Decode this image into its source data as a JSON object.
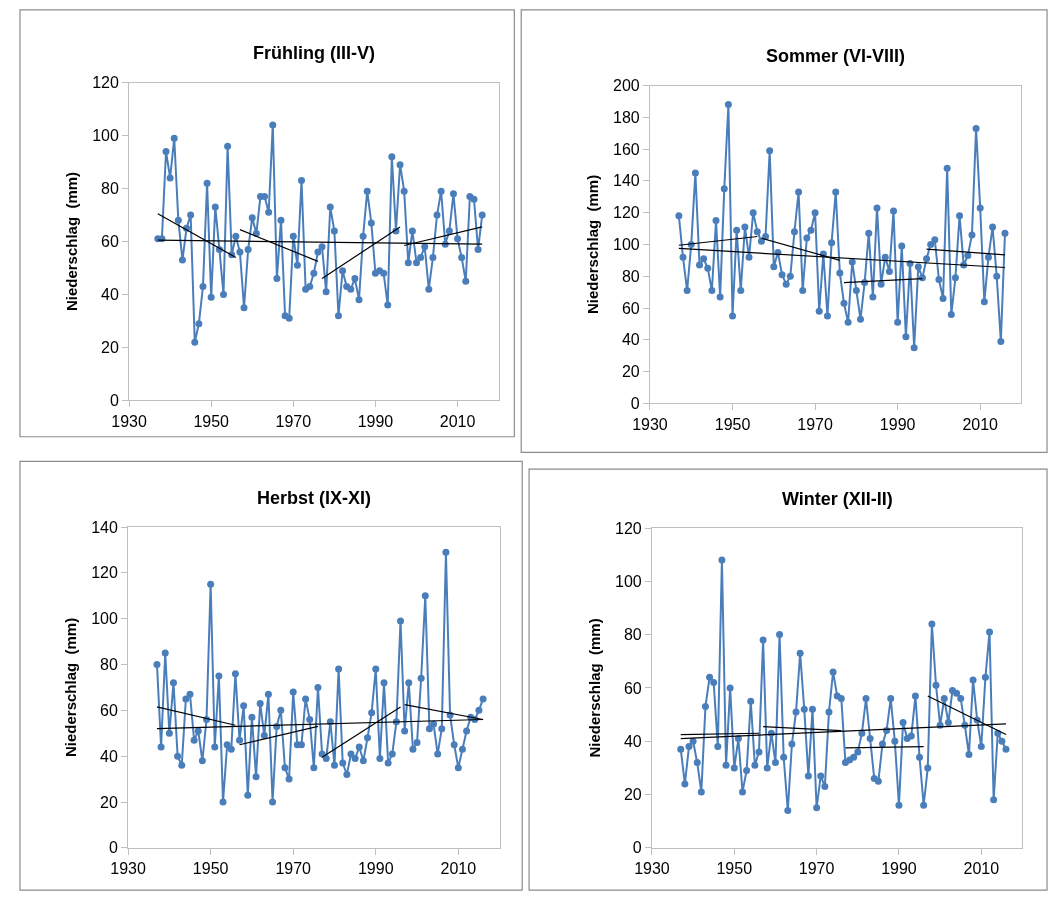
{
  "chart_data": [
    {
      "type": "line",
      "title": "Frühling (III-V)",
      "ylabel": "Niederschlag  (mm)",
      "xlim": [
        1930,
        2020
      ],
      "xticks": [
        1930,
        1950,
        1970,
        1990,
        2010
      ],
      "ylim": [
        0,
        120
      ],
      "yticks": [
        0,
        20,
        40,
        60,
        80,
        100,
        120
      ],
      "marker": "circle",
      "line_style": "solid",
      "x": [
        1937,
        1938,
        1939,
        1940,
        1941,
        1942,
        1943,
        1944,
        1945,
        1946,
        1947,
        1948,
        1949,
        1950,
        1951,
        1952,
        1953,
        1954,
        1955,
        1956,
        1957,
        1958,
        1959,
        1960,
        1961,
        1962,
        1963,
        1964,
        1965,
        1966,
        1967,
        1968,
        1969,
        1970,
        1971,
        1972,
        1973,
        1974,
        1975,
        1976,
        1977,
        1978,
        1979,
        1980,
        1981,
        1982,
        1983,
        1984,
        1985,
        1986,
        1987,
        1988,
        1989,
        1990,
        1991,
        1992,
        1993,
        1994,
        1995,
        1996,
        1997,
        1998,
        1999,
        2000,
        2001,
        2002,
        2003,
        2004,
        2005,
        2006,
        2007,
        2008,
        2009,
        2010,
        2011,
        2012,
        2013,
        2014,
        2015,
        2016
      ],
      "series": [
        {
          "color": "#4a7ebb",
          "values": [
            61,
            61,
            94,
            84,
            99,
            68,
            53,
            65,
            70,
            22,
            29,
            43,
            82,
            39,
            73,
            57,
            40,
            96,
            55,
            62,
            56,
            35,
            57,
            69,
            63,
            77,
            77,
            71,
            104,
            46,
            68,
            32,
            31,
            62,
            51,
            83,
            42,
            43,
            48,
            56,
            58,
            41,
            73,
            64,
            32,
            49,
            43,
            42,
            46,
            38,
            62,
            79,
            67,
            48,
            49,
            48,
            36,
            92,
            64,
            89,
            79,
            52,
            64,
            52,
            54,
            58,
            42,
            54,
            70,
            79,
            59,
            64,
            78,
            61,
            54,
            45,
            77,
            76,
            57,
            70
          ]
        },
        {
          "type": "line",
          "color": "#000000",
          "marker": "none",
          "x": [
            1937,
            2016
          ],
          "values": [
            60.5,
            59
          ]
        },
        {
          "type": "line",
          "color": "#000000",
          "marker": "none",
          "x": [
            1937,
            1956
          ],
          "values": [
            70.5,
            54
          ]
        },
        {
          "type": "line",
          "color": "#000000",
          "marker": "none",
          "x": [
            1957,
            1976
          ],
          "values": [
            64.5,
            52.5
          ]
        },
        {
          "type": "line",
          "color": "#000000",
          "marker": "none",
          "x": [
            1977,
            1996
          ],
          "values": [
            46,
            65.5
          ]
        },
        {
          "type": "line",
          "color": "#000000",
          "marker": "none",
          "x": [
            1997,
            2016
          ],
          "values": [
            58.5,
            65.5
          ]
        }
      ]
    },
    {
      "type": "line",
      "title": "Sommer (VI-VIII)",
      "ylabel": "Niederschlag  (mm)",
      "xlim": [
        1930,
        2020
      ],
      "xticks": [
        1930,
        1950,
        1970,
        1990,
        2010
      ],
      "ylim": [
        0,
        200
      ],
      "yticks": [
        0,
        20,
        40,
        60,
        80,
        100,
        120,
        140,
        160,
        180,
        200
      ],
      "marker": "circle",
      "line_style": "solid",
      "x": [
        1937,
        1938,
        1939,
        1940,
        1941,
        1942,
        1943,
        1944,
        1945,
        1946,
        1947,
        1948,
        1949,
        1950,
        1951,
        1952,
        1953,
        1954,
        1955,
        1956,
        1957,
        1958,
        1959,
        1960,
        1961,
        1962,
        1963,
        1964,
        1965,
        1966,
        1967,
        1968,
        1969,
        1970,
        1971,
        1972,
        1973,
        1974,
        1975,
        1976,
        1977,
        1978,
        1979,
        1980,
        1981,
        1982,
        1983,
        1984,
        1985,
        1986,
        1987,
        1988,
        1989,
        1990,
        1991,
        1992,
        1993,
        1994,
        1995,
        1996,
        1997,
        1998,
        1999,
        2000,
        2001,
        2002,
        2003,
        2004,
        2005,
        2006,
        2007,
        2008,
        2009,
        2010,
        2011,
        2012,
        2013,
        2014,
        2015,
        2016
      ],
      "series": [
        {
          "color": "#4a7ebb",
          "values": [
            118,
            92,
            71,
            100,
            145,
            87,
            91,
            85,
            71,
            115,
            67,
            135,
            188,
            55,
            109,
            71,
            111,
            92,
            120,
            108,
            102,
            105,
            159,
            86,
            95,
            81,
            75,
            80,
            108,
            133,
            71,
            104,
            109,
            120,
            58,
            94,
            55,
            101,
            133,
            82,
            63,
            51,
            89,
            71,
            53,
            76,
            107,
            67,
            123,
            75,
            92,
            83,
            121,
            51,
            99,
            42,
            88,
            35,
            86,
            79,
            91,
            100,
            103,
            78,
            66,
            148,
            56,
            79,
            118,
            87,
            93,
            106,
            173,
            123,
            64,
            92,
            111,
            80,
            39,
            107
          ]
        },
        {
          "type": "line",
          "color": "#000000",
          "marker": "none",
          "x": [
            1937,
            2016
          ],
          "values": [
            97.5,
            85.5
          ]
        },
        {
          "type": "line",
          "color": "#000000",
          "marker": "none",
          "x": [
            1937,
            1956
          ],
          "values": [
            99.5,
            105
          ]
        },
        {
          "type": "line",
          "color": "#000000",
          "marker": "none",
          "x": [
            1957,
            1976
          ],
          "values": [
            104,
            90
          ]
        },
        {
          "type": "line",
          "color": "#000000",
          "marker": "none",
          "x": [
            1977,
            1996
          ],
          "values": [
            76,
            78.5
          ]
        },
        {
          "type": "line",
          "color": "#000000",
          "marker": "none",
          "x": [
            1997,
            2016
          ],
          "values": [
            97,
            93.5
          ]
        }
      ]
    },
    {
      "type": "line",
      "title": "Herbst (IX-XI)",
      "ylabel": "Niederschlag  (mm)",
      "xlim": [
        1930,
        2020
      ],
      "xticks": [
        1930,
        1950,
        1970,
        1990,
        2010
      ],
      "ylim": [
        0,
        140
      ],
      "yticks": [
        0,
        20,
        40,
        60,
        80,
        100,
        120,
        140
      ],
      "marker": "circle",
      "line_style": "solid",
      "x": [
        1937,
        1938,
        1939,
        1940,
        1941,
        1942,
        1943,
        1944,
        1945,
        1946,
        1947,
        1948,
        1949,
        1950,
        1951,
        1952,
        1953,
        1954,
        1955,
        1956,
        1957,
        1958,
        1959,
        1960,
        1961,
        1962,
        1963,
        1964,
        1965,
        1966,
        1967,
        1968,
        1969,
        1970,
        1971,
        1972,
        1973,
        1974,
        1975,
        1976,
        1977,
        1978,
        1979,
        1980,
        1981,
        1982,
        1983,
        1984,
        1985,
        1986,
        1987,
        1988,
        1989,
        1990,
        1991,
        1992,
        1993,
        1994,
        1995,
        1996,
        1997,
        1998,
        1999,
        2000,
        2001,
        2002,
        2003,
        2004,
        2005,
        2006,
        2007,
        2008,
        2009,
        2010,
        2011,
        2012,
        2013,
        2014,
        2015,
        2016
      ],
      "series": [
        {
          "color": "#4a7ebb",
          "values": [
            80,
            44,
            85,
            50,
            72,
            40,
            36,
            65,
            67,
            47,
            51,
            38,
            56,
            115,
            44,
            75,
            20,
            45,
            43,
            76,
            47,
            62,
            23,
            57,
            31,
            63,
            49,
            67,
            20,
            53,
            60,
            35,
            30,
            68,
            45,
            45,
            65,
            56,
            35,
            70,
            41,
            39,
            55,
            36,
            78,
            37,
            32,
            41,
            39,
            44,
            38,
            48,
            59,
            78,
            39,
            72,
            37,
            41,
            55,
            99,
            51,
            72,
            43,
            46,
            74,
            110,
            52,
            54,
            41,
            52,
            129,
            58,
            45,
            35,
            43,
            51,
            57,
            56,
            60,
            65
          ]
        },
        {
          "type": "line",
          "color": "#000000",
          "marker": "none",
          "x": [
            1937,
            2016
          ],
          "values": [
            52,
            56
          ]
        },
        {
          "type": "line",
          "color": "#000000",
          "marker": "none",
          "x": [
            1937,
            1956
          ],
          "values": [
            61.5,
            53.5
          ]
        },
        {
          "type": "line",
          "color": "#000000",
          "marker": "none",
          "x": [
            1957,
            1976
          ],
          "values": [
            45,
            53
          ]
        },
        {
          "type": "line",
          "color": "#000000",
          "marker": "none",
          "x": [
            1977,
            1996
          ],
          "values": [
            39.5,
            61.5
          ]
        },
        {
          "type": "line",
          "color": "#000000",
          "marker": "none",
          "x": [
            1997,
            2016
          ],
          "values": [
            62.5,
            56
          ]
        }
      ]
    },
    {
      "type": "line",
      "title": "Winter (XII-II)",
      "ylabel": "Niederschlag  (mm)",
      "xlim": [
        1930,
        2020
      ],
      "xticks": [
        1930,
        1950,
        1970,
        1990,
        2010
      ],
      "ylim": [
        0,
        120
      ],
      "yticks": [
        0,
        20,
        40,
        60,
        80,
        100,
        120
      ],
      "marker": "circle",
      "line_style": "solid",
      "x": [
        1937,
        1938,
        1939,
        1940,
        1941,
        1942,
        1943,
        1944,
        1945,
        1946,
        1947,
        1948,
        1949,
        1950,
        1951,
        1952,
        1953,
        1954,
        1955,
        1956,
        1957,
        1958,
        1959,
        1960,
        1961,
        1962,
        1963,
        1964,
        1965,
        1966,
        1967,
        1968,
        1969,
        1970,
        1971,
        1972,
        1973,
        1974,
        1975,
        1976,
        1977,
        1978,
        1979,
        1980,
        1981,
        1982,
        1983,
        1984,
        1985,
        1986,
        1987,
        1988,
        1989,
        1990,
        1991,
        1992,
        1993,
        1994,
        1995,
        1996,
        1997,
        1998,
        1999,
        2000,
        2001,
        2002,
        2003,
        2004,
        2005,
        2006,
        2007,
        2008,
        2009,
        2010,
        2011,
        2012,
        2013,
        2014,
        2015,
        2016
      ],
      "series": [
        {
          "color": "#4a7ebb",
          "values": [
            37,
            24,
            38,
            40,
            32,
            21,
            53,
            64,
            62,
            38,
            108,
            31,
            60,
            30,
            41,
            21,
            29,
            55,
            31,
            36,
            78,
            30,
            43,
            32,
            80,
            34,
            14,
            39,
            51,
            73,
            52,
            27,
            52,
            15,
            27,
            23,
            51,
            66,
            57,
            56,
            32,
            33,
            34,
            36,
            43,
            56,
            41,
            26,
            25,
            39,
            44,
            56,
            40,
            16,
            47,
            41,
            42,
            57,
            34,
            16,
            30,
            84,
            61,
            46,
            56,
            47,
            59,
            58,
            56,
            46,
            35,
            63,
            48,
            38,
            64,
            81,
            18,
            43,
            40,
            37
          ]
        },
        {
          "type": "line",
          "color": "#000000",
          "marker": "none",
          "x": [
            1937,
            2016
          ],
          "values": [
            41,
            46.5
          ]
        },
        {
          "type": "line",
          "color": "#000000",
          "marker": "none",
          "x": [
            1937,
            1956
          ],
          "values": [
            42.5,
            43
          ]
        },
        {
          "type": "line",
          "color": "#000000",
          "marker": "none",
          "x": [
            1957,
            1976
          ],
          "values": [
            45.5,
            44
          ]
        },
        {
          "type": "line",
          "color": "#000000",
          "marker": "none",
          "x": [
            1977,
            1996
          ],
          "values": [
            37.5,
            38
          ]
        },
        {
          "type": "line",
          "color": "#000000",
          "marker": "none",
          "x": [
            1997,
            2016
          ],
          "values": [
            57,
            42.5
          ]
        }
      ]
    }
  ]
}
